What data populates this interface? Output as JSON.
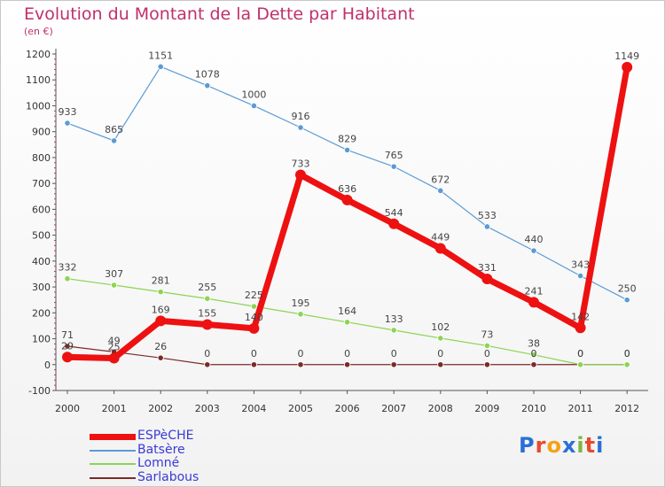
{
  "header": {
    "title": "Evolution du Montant de la Dette par Habitant",
    "unit": "(en €)"
  },
  "logo": {
    "text": "Proxiti",
    "letters": [
      {
        "ch": "P",
        "color": "#2a6fd6"
      },
      {
        "ch": "r",
        "color": "#e84a2a"
      },
      {
        "ch": "o",
        "color": "#f4a218"
      },
      {
        "ch": "x",
        "color": "#2a6fd6"
      },
      {
        "ch": "i",
        "color": "#7ab840"
      },
      {
        "ch": "t",
        "color": "#e84a2a"
      },
      {
        "ch": "i",
        "color": "#2a6fd6"
      }
    ]
  },
  "chart_data": {
    "type": "line",
    "title": "Evolution du Montant de la Dette par Habitant",
    "subtitle": "(en €)",
    "x": [
      "2000",
      "2001",
      "2002",
      "2003",
      "2004",
      "2005",
      "2006",
      "2007",
      "2008",
      "2009",
      "2010",
      "2011",
      "2012"
    ],
    "ylim": [
      -100,
      1200
    ],
    "yticks": [
      -100,
      0,
      100,
      200,
      300,
      400,
      500,
      600,
      700,
      800,
      900,
      1000,
      1100,
      1200
    ],
    "grid": false,
    "legend_position": "bottom-left",
    "series": [
      {
        "name": "ESPèCHE",
        "color": "#ee1111",
        "values": [
          29,
          25,
          169,
          155,
          140,
          733,
          636,
          544,
          449,
          331,
          241,
          142,
          1149
        ],
        "labels": [
          "29",
          "25",
          "169",
          "155",
          "140",
          "733",
          "636",
          "544",
          "449",
          "331",
          "241",
          "142",
          "1149"
        ]
      },
      {
        "name": "Batsère",
        "color": "#5b9bd5",
        "values": [
          933,
          865,
          1151,
          1078,
          1000,
          916,
          829,
          765,
          672,
          533,
          440,
          343,
          250
        ],
        "labels": [
          "933",
          "865",
          "1151",
          "1078",
          "1000",
          "916",
          "829",
          "765",
          "672",
          "533",
          "440",
          "343",
          "250"
        ]
      },
      {
        "name": "Lomné",
        "color": "#8cd452",
        "values": [
          332,
          307,
          281,
          255,
          225,
          195,
          164,
          133,
          102,
          73,
          38,
          0,
          0
        ],
        "labels": [
          "332",
          "307",
          "281",
          "255",
          "225",
          "195",
          "164",
          "133",
          "102",
          "73",
          "38",
          "0",
          "0"
        ]
      },
      {
        "name": "Sarlabous",
        "color": "#7a2a2a",
        "values": [
          71,
          49,
          26,
          0,
          0,
          0,
          0,
          0,
          0,
          0,
          0,
          0,
          0
        ],
        "labels": [
          "71",
          "49",
          "26",
          "0",
          "0",
          "0",
          "0",
          "0",
          "0",
          "0",
          "0",
          "0",
          "0"
        ]
      }
    ]
  }
}
